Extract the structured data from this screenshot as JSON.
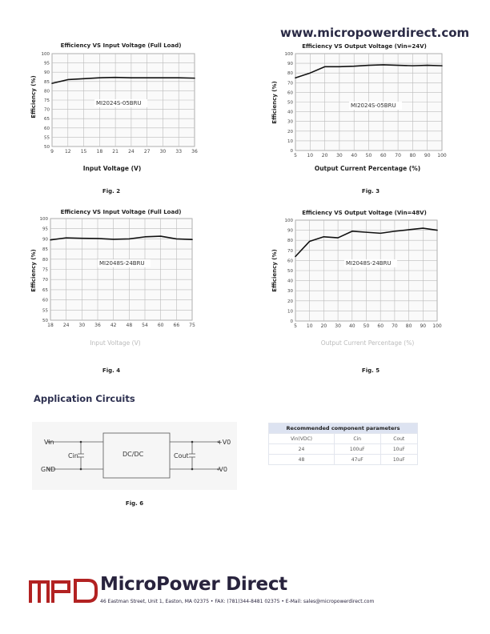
{
  "header": {
    "website": "www.micropowerdirect.com"
  },
  "chart_data": [
    {
      "type": "line",
      "title": "Efficiency VS Input Voltage (Full Load)",
      "xlabel": "Input Voltage (V)",
      "ylabel": "Efficiency (%)",
      "figure": "Fig. 2",
      "model": "MI2024S-05BRU",
      "xticks": [
        9,
        12,
        15,
        18,
        21,
        24,
        27,
        30,
        33,
        36
      ],
      "yticks": [
        50,
        55,
        60,
        65,
        70,
        75,
        80,
        85,
        90,
        95,
        100
      ],
      "ylim": [
        50,
        100
      ],
      "grid": true,
      "x": [
        9,
        12,
        15,
        18,
        21,
        24,
        27,
        30,
        33,
        36
      ],
      "y": [
        84,
        86,
        86.5,
        87,
        87.2,
        87,
        87,
        87,
        87,
        86.8
      ]
    },
    {
      "type": "line",
      "title": "Efficiency VS Output Voltage (Vin=24V)",
      "xlabel": "Output Current Percentage (%)",
      "ylabel": "Efficiency (%)",
      "figure": "Fig. 3",
      "model": "MI2024S-05BRU",
      "xticks": [
        5,
        10,
        20,
        30,
        40,
        50,
        60,
        70,
        80,
        90,
        100
      ],
      "yticks": [
        0,
        10,
        20,
        30,
        40,
        50,
        60,
        70,
        80,
        90,
        100
      ],
      "ylim": [
        0,
        100
      ],
      "grid": true,
      "x": [
        5,
        10,
        20,
        30,
        40,
        50,
        60,
        70,
        80,
        90,
        100
      ],
      "y": [
        75,
        80,
        86.5,
        86.5,
        87,
        88,
        88.5,
        88,
        87.5,
        88,
        87.5
      ]
    },
    {
      "type": "line",
      "title": "Efficiency VS Input Voltage (Full Load)",
      "xlabel": "Input Voltage (V)",
      "ylabel": "Efficiency (%)",
      "figure": "Fig. 4",
      "model": "MI2048S-24BRU",
      "xticks": [
        18,
        24,
        30,
        36,
        42,
        48,
        54,
        60,
        66,
        75
      ],
      "yticks": [
        50,
        55,
        60,
        65,
        70,
        75,
        80,
        85,
        90,
        95,
        100
      ],
      "ylim": [
        50,
        100
      ],
      "grid": true,
      "x": [
        18,
        24,
        30,
        36,
        42,
        48,
        54,
        60,
        66,
        75
      ],
      "y": [
        89.5,
        90.5,
        90.3,
        90.2,
        89.8,
        90,
        91,
        91.3,
        90,
        89.7
      ]
    },
    {
      "type": "line",
      "title": "Efficiency VS Output Voltage (Vin=48V)",
      "xlabel": "Output Current Percentage (%)",
      "ylabel": "Efficiency (%)",
      "figure": "Fig. 5",
      "model": "MI2048S-24BRU",
      "xticks": [
        5,
        10,
        20,
        30,
        40,
        50,
        60,
        70,
        80,
        90,
        100
      ],
      "yticks": [
        0,
        10,
        20,
        30,
        40,
        50,
        60,
        70,
        80,
        90,
        100
      ],
      "ylim": [
        0,
        100
      ],
      "grid": true,
      "x": [
        5,
        10,
        20,
        30,
        40,
        50,
        60,
        70,
        80,
        90,
        100
      ],
      "y": [
        64,
        79,
        83.5,
        82.5,
        89,
        88,
        87,
        89,
        90.5,
        92,
        90
      ]
    }
  ],
  "section": {
    "title": "Application Circuits"
  },
  "circuit": {
    "vin": "Vin",
    "gnd": "GND",
    "cin": "Cin",
    "block": "DC/DC",
    "cout": "Cout",
    "vplus": "+V0",
    "vminus": "-V0",
    "figure": "Fig. 6"
  },
  "table": {
    "title": "Recommended component parameters",
    "headers": [
      "Vin(VDC)",
      "Cin",
      "Cout"
    ],
    "rows": [
      [
        "24",
        "100uF",
        "10uF"
      ],
      [
        "48",
        "47uF",
        "10uF"
      ]
    ]
  },
  "footer": {
    "logo": "MPD",
    "brand": "MicroPower Direct",
    "address": "46 Eastman Street, Unit 1, Easton, MA 02375 • FAX: (781)344-8481 02375 • E-Mail: sales@micropowerdirect.com",
    "brand_color": "#b22222"
  }
}
